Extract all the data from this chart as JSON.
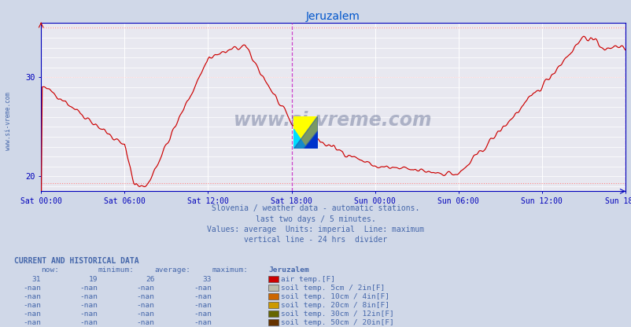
{
  "title": "Jeruzalem",
  "title_color": "#0055cc",
  "bg_color": "#d0d8e8",
  "plot_bg_color": "#e8e8f0",
  "grid_color": "#ffffff",
  "axis_color": "#0000bb",
  "text_color": "#4466aa",
  "xticklabels": [
    "Sat 00:00",
    "Sat 06:00",
    "Sat 12:00",
    "Sat 18:00",
    "Sun 00:00",
    "Sun 06:00",
    "Sun 12:00",
    "Sun 18:00"
  ],
  "xtick_positions": [
    0,
    72,
    144,
    216,
    288,
    360,
    432,
    504
  ],
  "yticks": [
    20,
    30
  ],
  "ymin": 18.5,
  "ymax": 35.5,
  "line_color": "#cc0000",
  "vline_color": "#cc44cc",
  "vline_x": 216,
  "vline_x2": 504,
  "subtitle1": "Slovenia / weather data - automatic stations.",
  "subtitle2": "last two days / 5 minutes.",
  "subtitle3": "Values: average  Units: imperial  Line: maximum",
  "subtitle4": "vertical line - 24 hrs  divider",
  "subtitle_color": "#4466aa",
  "watermark": "www.si-vreme.com",
  "watermark_color": "#223366",
  "sidebar_text": "www.si-vreme.com",
  "sidebar_color": "#4466aa",
  "table_header": "CURRENT AND HISTORICAL DATA",
  "col_headers": [
    "now:",
    "minimum:",
    "average:",
    "maximum:",
    "Jeruzalem"
  ],
  "rows": [
    {
      "now": "31",
      "min": "19",
      "avg": "26",
      "max": "33",
      "color": "#cc0000",
      "label": "air temp.[F]"
    },
    {
      "now": "-nan",
      "min": "-nan",
      "avg": "-nan",
      "max": "-nan",
      "color": "#bbbbaa",
      "label": "soil temp. 5cm / 2in[F]"
    },
    {
      "now": "-nan",
      "min": "-nan",
      "avg": "-nan",
      "max": "-nan",
      "color": "#cc6600",
      "label": "soil temp. 10cm / 4in[F]"
    },
    {
      "now": "-nan",
      "min": "-nan",
      "avg": "-nan",
      "max": "-nan",
      "color": "#cc9900",
      "label": "soil temp. 20cm / 8in[F]"
    },
    {
      "now": "-nan",
      "min": "-nan",
      "avg": "-nan",
      "max": "-nan",
      "color": "#666600",
      "label": "soil temp. 30cm / 12in[F]"
    },
    {
      "now": "-nan",
      "min": "-nan",
      "avg": "-nan",
      "max": "-nan",
      "color": "#663300",
      "label": "soil temp. 50cm / 20in[F]"
    }
  ]
}
